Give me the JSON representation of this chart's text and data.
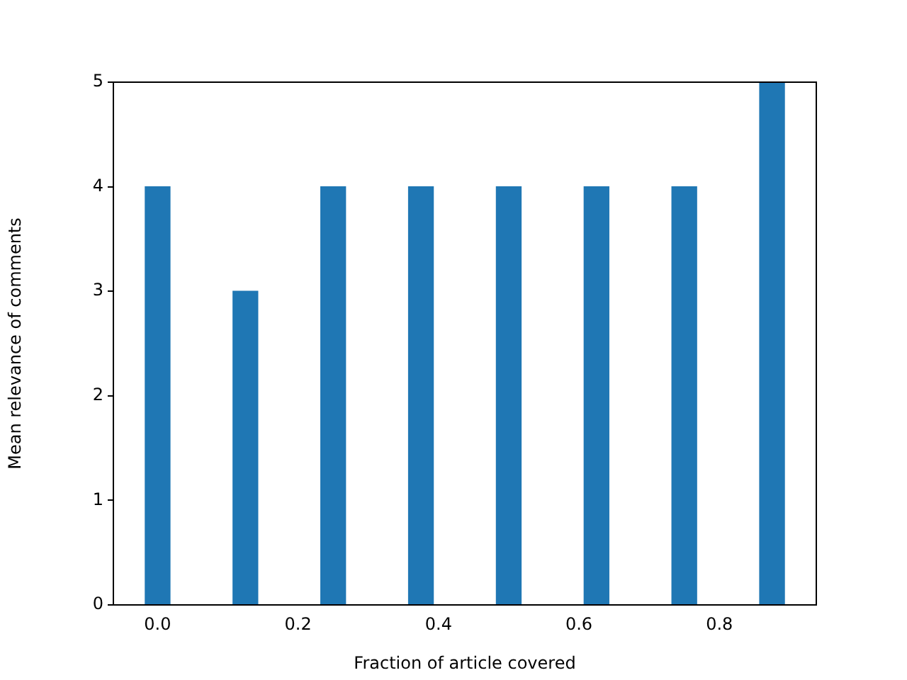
{
  "chart_data": {
    "type": "bar",
    "xlabel": "Fraction of article covered",
    "ylabel": "Mean relevance of comments",
    "x": [
      0.0,
      0.125,
      0.25,
      0.375,
      0.5,
      0.625,
      0.75,
      0.875
    ],
    "values": [
      4,
      3,
      4,
      4,
      4,
      4,
      4,
      5
    ],
    "color": "#1f77b4",
    "xlim": [
      -0.063,
      0.938
    ],
    "xticks": [
      {
        "value": 0,
        "label": "0.0"
      },
      {
        "value": 0.2,
        "label": "0.2"
      },
      {
        "value": 0.4,
        "label": "0.4"
      },
      {
        "value": 0.6,
        "label": "0.6"
      },
      {
        "value": 0.8,
        "label": "0.8"
      }
    ],
    "ylim": [
      0,
      5
    ],
    "yticks": [
      0,
      1,
      2,
      3,
      4,
      5
    ],
    "grid": false,
    "legend": false
  }
}
